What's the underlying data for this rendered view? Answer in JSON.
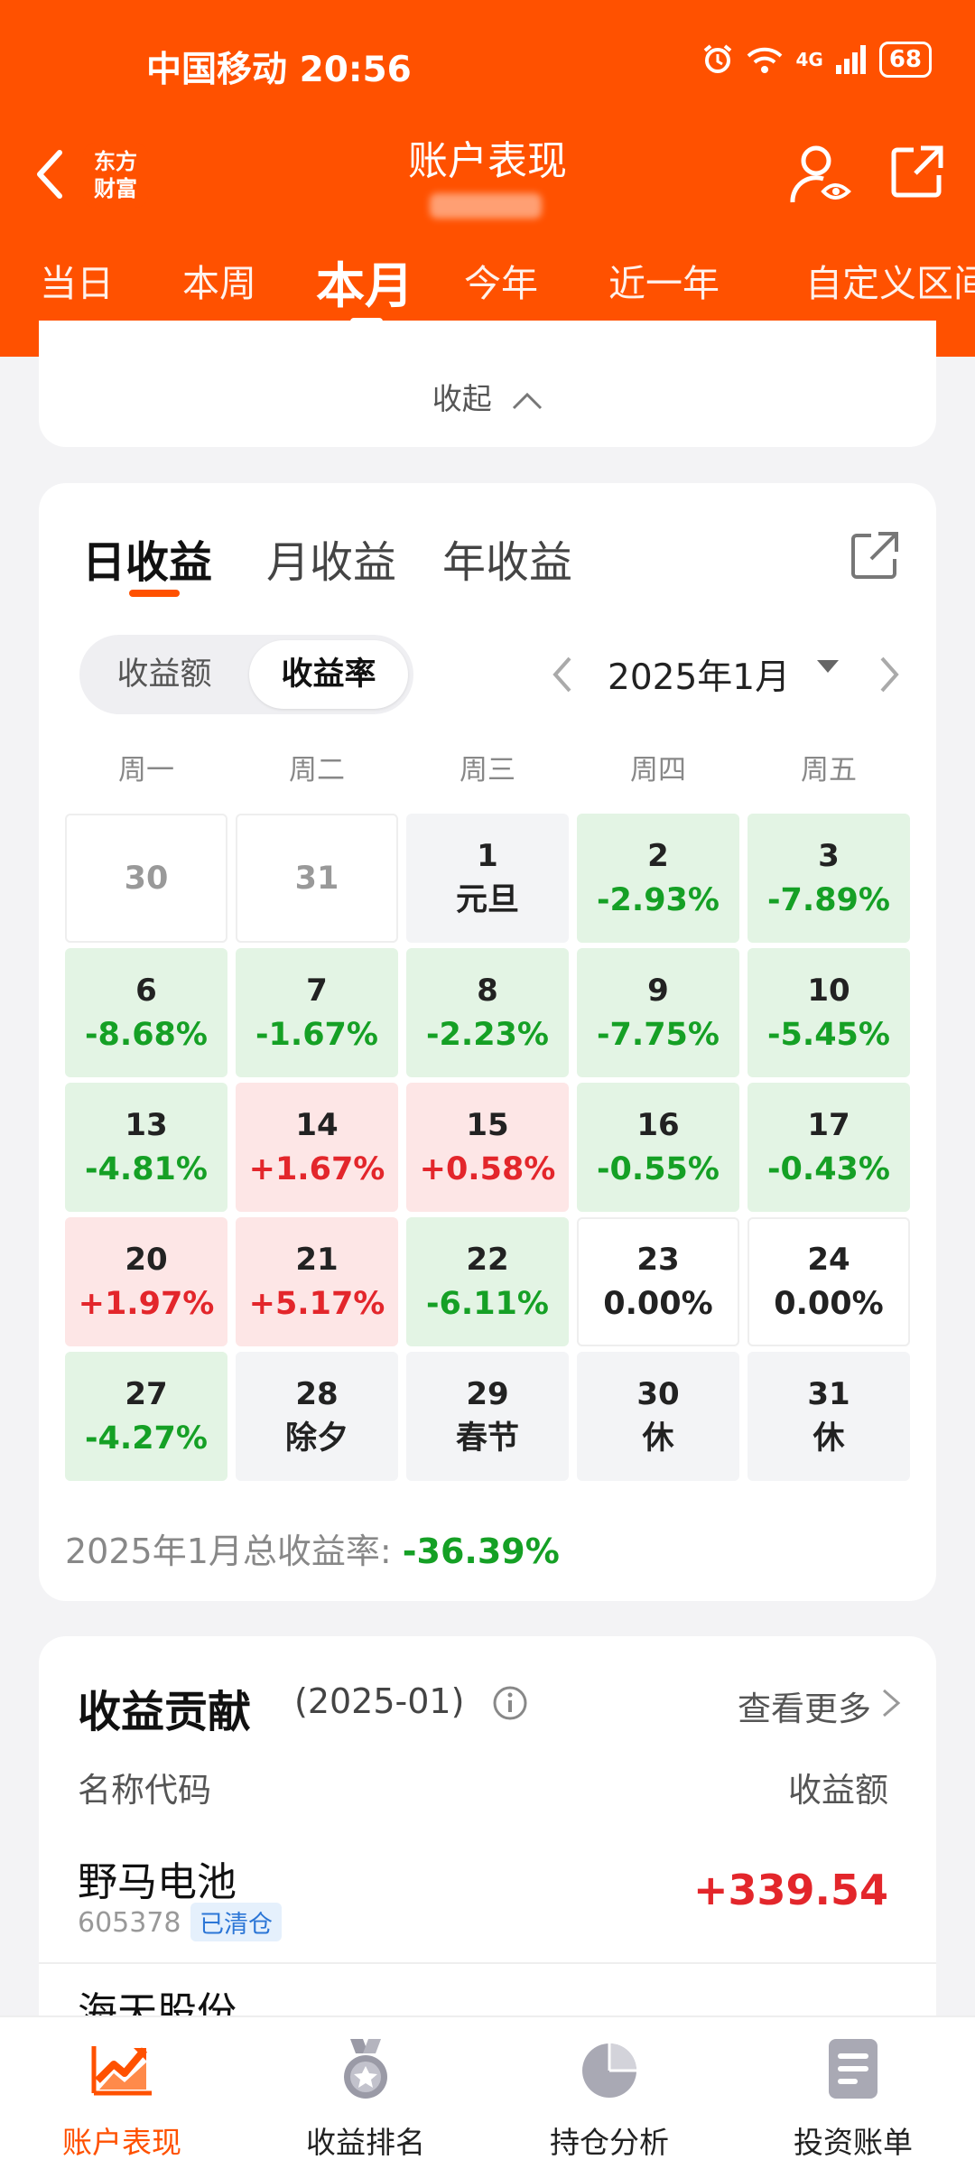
{
  "status": {
    "carrier_time": "中国移动 20:56",
    "network": "4G",
    "battery": "68"
  },
  "header": {
    "logo_line1": "东方",
    "logo_line2": "财富",
    "title": "账户表现",
    "period_tabs": [
      "当日",
      "本周",
      "本月",
      "今年",
      "近一年",
      "自定义区间"
    ],
    "active_tab": "本月"
  },
  "collapse": {
    "label": "收起"
  },
  "profit": {
    "tabs": [
      "日收益",
      "月收益",
      "年收益"
    ],
    "active_tab": "日收益",
    "toggle": [
      "收益额",
      "收益率"
    ],
    "toggle_active": "收益率",
    "month": "2025年1月",
    "weekdays": [
      "周一",
      "周二",
      "周三",
      "周四",
      "周五"
    ],
    "calendar": [
      [
        {
          "d": "30",
          "v": "",
          "kind": "empty"
        },
        {
          "d": "31",
          "v": "",
          "kind": "empty"
        },
        {
          "d": "1",
          "v": "元旦",
          "kind": "neutral"
        },
        {
          "d": "2",
          "v": "-2.93%",
          "kind": "down"
        },
        {
          "d": "3",
          "v": "-7.89%",
          "kind": "down"
        }
      ],
      [
        {
          "d": "6",
          "v": "-8.68%",
          "kind": "down"
        },
        {
          "d": "7",
          "v": "-1.67%",
          "kind": "down"
        },
        {
          "d": "8",
          "v": "-2.23%",
          "kind": "down"
        },
        {
          "d": "9",
          "v": "-7.75%",
          "kind": "down"
        },
        {
          "d": "10",
          "v": "-5.45%",
          "kind": "down"
        }
      ],
      [
        {
          "d": "13",
          "v": "-4.81%",
          "kind": "down"
        },
        {
          "d": "14",
          "v": "+1.67%",
          "kind": "up"
        },
        {
          "d": "15",
          "v": "+0.58%",
          "kind": "up"
        },
        {
          "d": "16",
          "v": "-0.55%",
          "kind": "down"
        },
        {
          "d": "17",
          "v": "-0.43%",
          "kind": "down"
        }
      ],
      [
        {
          "d": "20",
          "v": "+1.97%",
          "kind": "up"
        },
        {
          "d": "21",
          "v": "+5.17%",
          "kind": "up"
        },
        {
          "d": "22",
          "v": "-6.11%",
          "kind": "down"
        },
        {
          "d": "23",
          "v": "0.00%",
          "kind": "flat"
        },
        {
          "d": "24",
          "v": "0.00%",
          "kind": "flat"
        }
      ],
      [
        {
          "d": "27",
          "v": "-4.27%",
          "kind": "down"
        },
        {
          "d": "28",
          "v": "除夕",
          "kind": "neutral"
        },
        {
          "d": "29",
          "v": "春节",
          "kind": "neutral"
        },
        {
          "d": "30",
          "v": "休",
          "kind": "neutral"
        },
        {
          "d": "31",
          "v": "休",
          "kind": "neutral"
        }
      ]
    ],
    "total_label": "2025年1月总收益率:",
    "total_value": "-36.39%"
  },
  "contribution": {
    "title": "收益贡献",
    "period": "(2025-01)",
    "see_more": "查看更多",
    "col_name": "名称代码",
    "col_amount": "收益额",
    "rows": [
      {
        "name": "野马电池",
        "code": "605378",
        "badge": "已清仓",
        "amount": "+339.54"
      },
      {
        "name": "海天股份"
      }
    ]
  },
  "bottom_nav": [
    {
      "label": "账户表现",
      "icon": "trend-chart-icon",
      "active": true
    },
    {
      "label": "收益排名",
      "icon": "medal-icon",
      "active": false
    },
    {
      "label": "持仓分析",
      "icon": "pie-chart-icon",
      "active": false
    },
    {
      "label": "投资账单",
      "icon": "bill-icon",
      "active": false
    }
  ],
  "colors": {
    "brand": "#ff5100",
    "gain": "#e3262b",
    "loss": "#15a025"
  }
}
